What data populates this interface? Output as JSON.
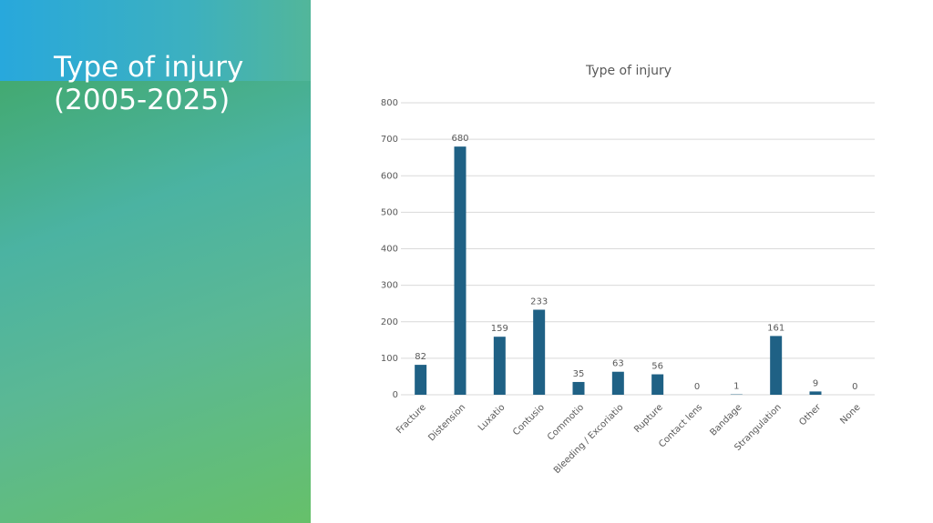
{
  "slide_title": "Type of injury (2005-2025)",
  "chart_data": {
    "type": "bar",
    "title": "Type of injury",
    "categories": [
      "Fracture",
      "Distension",
      "Luxatio",
      "Contusio",
      "Commotio",
      "Bleeding / Excoriatio",
      "Rupture",
      "Contact lens",
      "Bandage",
      "Strangulation",
      "Other",
      "None"
    ],
    "values": [
      82,
      680,
      159,
      233,
      35,
      63,
      56,
      0,
      1,
      161,
      9,
      0
    ],
    "color": "#1f6185",
    "ylim": [
      0,
      800
    ],
    "yticks": [
      0,
      100,
      200,
      300,
      400,
      500,
      600,
      700,
      800
    ],
    "grid": true,
    "data_labels": true
  }
}
